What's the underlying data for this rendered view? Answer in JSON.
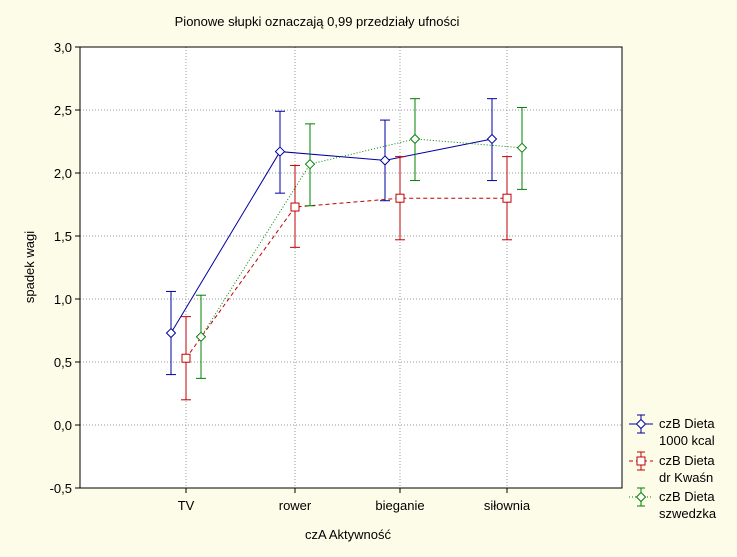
{
  "chart_data": {
    "type": "line",
    "title": "Pionowe słupki oznaczają 0,99 przedziały ufności",
    "xlabel": "czA Aktywność",
    "ylabel": "spadek wagi",
    "categories": [
      "TV",
      "rower",
      "bieganie",
      "siłownia"
    ],
    "ylim": [
      -0.5,
      3.0
    ],
    "yticks": [
      "-0,5",
      "0,0",
      "0,5",
      "1,0",
      "1,5",
      "2,0",
      "2,5",
      "3,0"
    ],
    "ytick_values": [
      -0.5,
      0.0,
      0.5,
      1.0,
      1.5,
      2.0,
      2.5,
      3.0
    ],
    "grid": true,
    "legend_position": "bottom-right outside",
    "series": [
      {
        "name_line1": "czB Dieta",
        "name_line2": "1000 kcal",
        "color": "#0000A0",
        "marker": "diamond",
        "line_style": "solid",
        "values": [
          0.73,
          2.17,
          2.1,
          2.27
        ],
        "ci_low": [
          0.4,
          1.84,
          1.78,
          1.94
        ],
        "ci_high": [
          1.06,
          2.49,
          2.42,
          2.59
        ]
      },
      {
        "name_line1": "czB Dieta",
        "name_line2": "dr Kwaśn",
        "color": "#C00000",
        "marker": "square",
        "line_style": "dashed",
        "values": [
          0.53,
          1.73,
          1.8,
          1.8
        ],
        "ci_low": [
          0.2,
          1.41,
          1.47,
          1.47
        ],
        "ci_high": [
          0.86,
          2.06,
          2.13,
          2.13
        ]
      },
      {
        "name_line1": "czB Dieta",
        "name_line2": "szwedzka",
        "color": "#008000",
        "marker": "diamond",
        "line_style": "dotted",
        "values": [
          0.7,
          2.07,
          2.27,
          2.2
        ],
        "ci_low": [
          0.37,
          1.74,
          1.94,
          1.87
        ],
        "ci_high": [
          1.03,
          2.39,
          2.59,
          2.52
        ]
      }
    ]
  },
  "colors": {
    "background": "#FCFCE8",
    "plot_area": "#FFFFFF",
    "grid": "#9A9A9A",
    "axis": "#000000"
  }
}
